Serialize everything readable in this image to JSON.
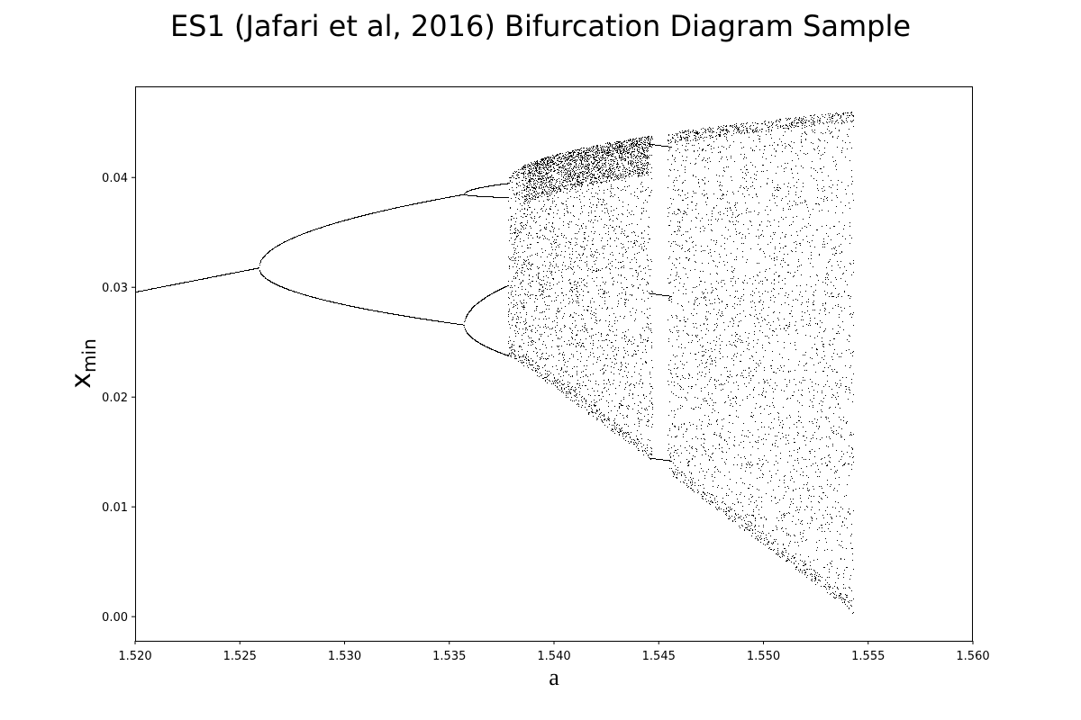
{
  "chart_data": {
    "type": "scatter",
    "title": "ES1 (Jafari et al, 2016) Bifurcation Diagram Sample",
    "xlabel": "a",
    "ylabel_main": "x",
    "ylabel_sub": "min",
    "xlim": [
      1.52,
      1.56
    ],
    "ylim": [
      -0.0022,
      0.0483
    ],
    "x_ticks": [
      "1.520",
      "1.525",
      "1.530",
      "1.535",
      "1.540",
      "1.545",
      "1.550",
      "1.555",
      "1.560"
    ],
    "y_ticks": [
      "0.00",
      "0.01",
      "0.02",
      "0.03",
      "0.04"
    ],
    "grid": false,
    "marker_color": "#000000",
    "branch_data": {
      "period1": {
        "a": [
          1.52,
          1.5259
        ],
        "x": [
          0.0296,
          0.0318
        ]
      },
      "period2": {
        "a": [
          1.5259,
          1.5357
        ],
        "upper": [
          0.0318,
          0.0385
        ],
        "lower": [
          0.0318,
          0.0266
        ]
      },
      "period4": {
        "a": [
          1.5357,
          1.5378
        ],
        "upper_a": [
          0.0385,
          0.0395
        ],
        "upper_b": [
          0.0385,
          0.0382
        ],
        "lower_a": [
          0.0266,
          0.0302
        ],
        "lower_b": [
          0.0266,
          0.0238
        ]
      },
      "chaos": {
        "a": [
          1.5378,
          1.5543
        ],
        "x_min": [
          0.0238,
          0.0003
        ],
        "x_max": [
          0.0398,
          0.0461
        ]
      },
      "window": {
        "a": [
          1.5447,
          1.5454
        ],
        "levels": [
          0.0431,
          0.0295,
          0.0145
        ]
      }
    }
  }
}
